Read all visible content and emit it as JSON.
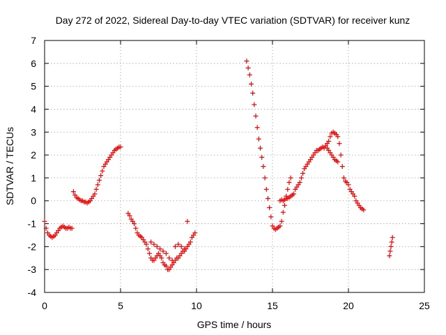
{
  "chart_data": {
    "type": "scatter",
    "title": "Day 272 of 2022, Sidereal Day-to-day VTEC variation (SDTVAR) for receiver kunz",
    "xlabel": "GPS time / hours",
    "ylabel": "SDTVAR / TECUs",
    "xlim": [
      0,
      25
    ],
    "ylim": [
      -4,
      7
    ],
    "xticks": [
      "0",
      "5",
      "10",
      "15",
      "20",
      "25"
    ],
    "yticks": [
      "-4",
      "-3",
      "-2",
      "-1",
      "0",
      "1",
      "2",
      "3",
      "4",
      "5",
      "6",
      "7"
    ],
    "grid": true,
    "marker": "plus",
    "color": "#ee0000",
    "series": [
      {
        "x": [
          0.0,
          0.1,
          0.2,
          0.3,
          0.4,
          0.5,
          0.6,
          0.7,
          0.8,
          0.9,
          1.0,
          1.1,
          1.2,
          1.3,
          1.4,
          1.5,
          1.6,
          1.7,
          1.8,
          1.9,
          2.0,
          2.1,
          2.2,
          2.3,
          2.4,
          2.5,
          2.6,
          2.7,
          2.8,
          2.9,
          3.0,
          3.1,
          3.2,
          3.3,
          3.4,
          3.5,
          3.6,
          3.7,
          3.8,
          3.9,
          4.0,
          4.1,
          4.2,
          4.3,
          4.4,
          4.5,
          4.6,
          4.7,
          4.8,
          4.9,
          5.0,
          5.5,
          5.6,
          5.7,
          5.8,
          5.9,
          6.0,
          6.1,
          6.2,
          6.3,
          6.4,
          6.5,
          6.6,
          6.7,
          6.8,
          6.9,
          7.0,
          7.1,
          7.2,
          7.3,
          7.4,
          7.5,
          7.6,
          7.7,
          7.8,
          7.9,
          8.0,
          8.1,
          8.2,
          8.3,
          8.4,
          8.5,
          8.6,
          8.7,
          8.8,
          8.9,
          9.0,
          9.1,
          9.2,
          9.3,
          9.4,
          9.5,
          9.6,
          9.7,
          9.8,
          9.9,
          7.0,
          7.2,
          7.4,
          7.6,
          7.8,
          8.0,
          8.2,
          8.4,
          8.6,
          8.8,
          9.0,
          9.2,
          9.4,
          13.3,
          13.4,
          13.5,
          13.6,
          13.7,
          13.8,
          13.9,
          14.0,
          14.1,
          14.2,
          14.3,
          14.4,
          14.5,
          14.6,
          14.7,
          14.8,
          14.9,
          15.0,
          15.1,
          15.2,
          15.3,
          15.4,
          15.5,
          15.6,
          15.7,
          15.8,
          15.9,
          16.0,
          16.1,
          16.2,
          15.5,
          15.6,
          15.7,
          15.8,
          15.9,
          16.0,
          16.1,
          16.2,
          16.3,
          16.4,
          16.5,
          16.6,
          16.7,
          16.8,
          16.9,
          17.0,
          17.1,
          17.2,
          17.3,
          17.4,
          17.5,
          17.6,
          17.7,
          17.8,
          17.9,
          18.0,
          18.1,
          18.2,
          18.3,
          18.4,
          18.5,
          18.6,
          18.7,
          18.8,
          18.9,
          19.0,
          19.1,
          19.2,
          19.3,
          19.4,
          19.5,
          19.6,
          19.7,
          19.8,
          19.9,
          20.0,
          20.1,
          20.2,
          20.3,
          20.4,
          20.5,
          20.6,
          20.7,
          20.8,
          20.9,
          21.0,
          18.6,
          18.7,
          18.8,
          18.9,
          19.0,
          19.1,
          19.2,
          19.3,
          22.7,
          22.75,
          22.8,
          22.85,
          22.9
        ],
        "y": [
          -0.9,
          -1.2,
          -1.4,
          -1.5,
          -1.55,
          -1.6,
          -1.55,
          -1.5,
          -1.4,
          -1.3,
          -1.2,
          -1.15,
          -1.1,
          -1.15,
          -1.2,
          -1.2,
          -1.15,
          -1.2,
          -1.2,
          0.4,
          0.25,
          0.15,
          0.1,
          0.05,
          0.0,
          0.0,
          -0.05,
          -0.05,
          -0.1,
          -0.05,
          0.0,
          0.1,
          0.2,
          0.3,
          0.5,
          0.7,
          0.9,
          1.1,
          1.3,
          1.5,
          1.6,
          1.7,
          1.8,
          1.9,
          2.0,
          2.1,
          2.2,
          2.25,
          2.3,
          2.35,
          2.35,
          -0.55,
          -0.65,
          -0.8,
          -0.9,
          -1.0,
          -1.2,
          -1.4,
          -1.5,
          -1.55,
          -1.6,
          -1.7,
          -1.8,
          -1.9,
          -2.1,
          -2.3,
          -2.5,
          -2.6,
          -2.6,
          -2.5,
          -2.4,
          -2.3,
          -2.4,
          -2.5,
          -2.7,
          -2.8,
          -2.85,
          -3.0,
          -3.0,
          -2.9,
          -2.8,
          -2.7,
          -2.6,
          -2.5,
          -2.5,
          -2.4,
          -2.3,
          -2.2,
          -2.1,
          -2.1,
          -2.0,
          -1.9,
          -1.8,
          -1.6,
          -1.5,
          -1.4,
          -1.8,
          -1.9,
          -2.0,
          -2.1,
          -2.2,
          -2.3,
          -2.5,
          -2.6,
          -2.0,
          -1.9,
          -2.0,
          -2.2,
          -0.9,
          6.1,
          5.8,
          5.5,
          5.1,
          4.7,
          4.2,
          3.7,
          3.2,
          2.7,
          2.3,
          1.9,
          1.5,
          1.0,
          0.5,
          0.1,
          -0.3,
          -0.7,
          -1.1,
          -1.2,
          -1.25,
          -1.2,
          -1.15,
          -1.1,
          -0.9,
          -0.5,
          -0.2,
          0.2,
          0.5,
          0.8,
          1.0,
          0.0,
          0.05,
          0.0,
          0.05,
          0.1,
          0.1,
          0.15,
          0.2,
          0.25,
          0.3,
          0.5,
          0.6,
          0.7,
          0.8,
          1.0,
          1.2,
          1.4,
          1.5,
          1.6,
          1.7,
          1.8,
          1.9,
          2.0,
          2.1,
          2.2,
          2.2,
          2.25,
          2.3,
          2.35,
          2.3,
          2.4,
          2.5,
          2.6,
          2.8,
          2.95,
          3.0,
          2.95,
          2.9,
          2.8,
          2.5,
          2.0,
          1.5,
          1.0,
          0.85,
          0.8,
          0.7,
          0.5,
          0.4,
          0.3,
          0.2,
          0.0,
          -0.1,
          -0.2,
          -0.3,
          -0.35,
          -0.4,
          2.3,
          2.2,
          2.1,
          2.0,
          1.9,
          1.8,
          1.75,
          1.7,
          -2.4,
          -2.2,
          -2.0,
          -1.8,
          -1.6
        ]
      }
    ]
  }
}
